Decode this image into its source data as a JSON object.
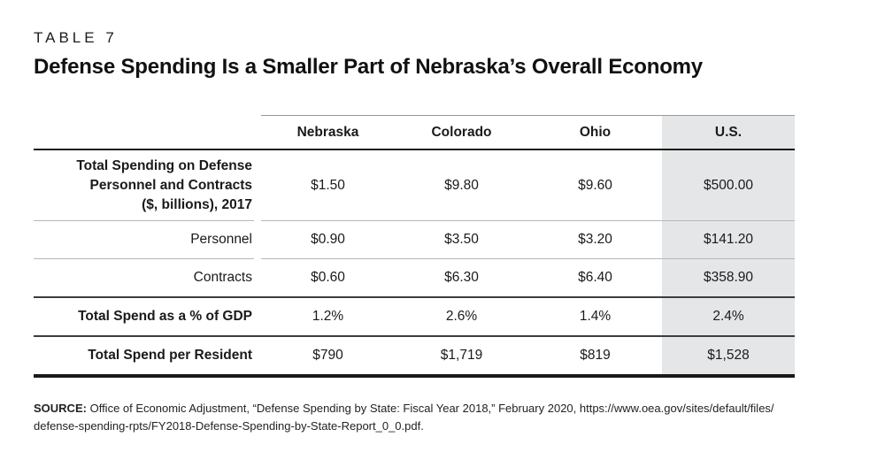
{
  "colors": {
    "highlight_bg": "#e5e6e7",
    "rule_dark": "#1a1a1a",
    "rule_medium": "#3d3d3d",
    "rule_light": "#b7b7b7",
    "text": "#1a1a1a"
  },
  "chart_data": {
    "type": "table",
    "table_label": "TABLE 7",
    "title": "Defense Spending Is a Smaller Part of Nebraska’s Overall Economy",
    "columns": [
      "Nebraska",
      "Colorado",
      "Ohio",
      "U.S."
    ],
    "highlight_column": "U.S.",
    "rows": [
      {
        "label": "Total Spending on Defense Personnel and Contracts ($, billions), 2017",
        "label_lines": [
          "Total Spending on Defense",
          "Personnel and Contracts",
          "($, billions), 2017"
        ],
        "bold": true,
        "values": [
          "$1.50",
          "$9.80",
          "$9.60",
          "$500.00"
        ]
      },
      {
        "label": "Personnel",
        "bold": false,
        "values": [
          "$0.90",
          "$3.50",
          "$3.20",
          "$141.20"
        ]
      },
      {
        "label": "Contracts",
        "bold": false,
        "values": [
          "$0.60",
          "$6.30",
          "$6.40",
          "$358.90"
        ]
      },
      {
        "label": "Total Spend as a % of GDP",
        "bold": true,
        "values": [
          "1.2%",
          "2.6%",
          "1.4%",
          "2.4%"
        ]
      },
      {
        "label": "Total Spend per Resident",
        "bold": true,
        "values": [
          "$790",
          "$1,719",
          "$819",
          "$1,528"
        ]
      }
    ]
  },
  "source": {
    "label": "SOURCE:",
    "line1": "Office of Economic Adjustment, “Defense Spending by State: Fiscal Year 2018,” February 2020, https://www.oea.gov/sites/default/files/",
    "line2": "defense-spending-rpts/FY2018-Defense-Spending-by-State-Report_0_0.pdf."
  }
}
